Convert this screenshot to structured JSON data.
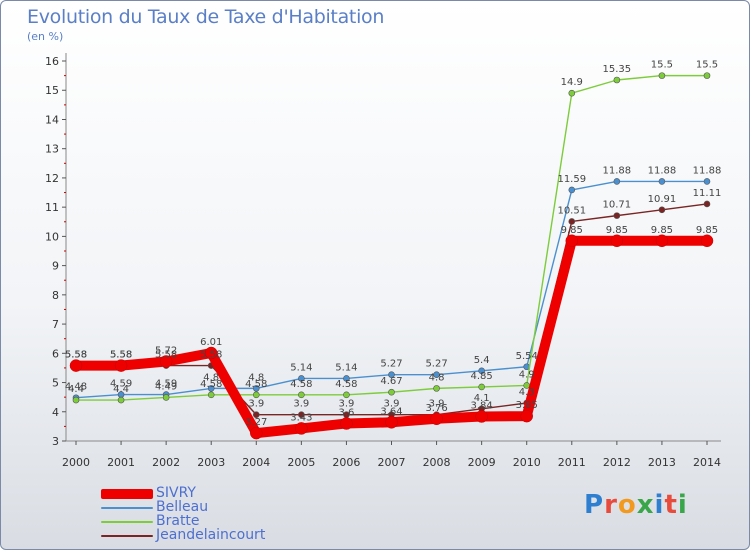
{
  "header": {
    "title": "Evolution du Taux de Taxe d'Habitation",
    "subtitle": "(en %)"
  },
  "logo": {
    "text": "Proxiti",
    "letter_colors": [
      "#2f7fd0",
      "#e84b3c",
      "#f29a1f",
      "#3aa64a",
      "#2f7fd0",
      "#e84b3c",
      "#3aa64a"
    ]
  },
  "chart_data": {
    "type": "line",
    "x": [
      "2000",
      "2001",
      "2002",
      "2003",
      "2004",
      "2005",
      "2006",
      "2007",
      "2008",
      "2009",
      "2010",
      "2011",
      "2012",
      "2013",
      "2014"
    ],
    "ylim": [
      3,
      16
    ],
    "yticks": [
      3,
      4,
      5,
      6,
      7,
      8,
      9,
      10,
      11,
      12,
      13,
      14,
      15,
      16
    ],
    "grid": false,
    "legend_position": "bottom-left",
    "series": [
      {
        "name": "SIVRY",
        "color": "#ee0000",
        "values": [
          5.58,
          5.58,
          5.72,
          6.01,
          3.27,
          3.43,
          3.6,
          3.64,
          3.76,
          3.84,
          3.85,
          9.85,
          9.85,
          9.85,
          9.85
        ],
        "labels": [
          "5.58",
          "5.58",
          "5.72",
          "6.01",
          "3.27",
          "3.43",
          "3.6",
          "3.64",
          "3.76",
          "3.84",
          "3.85",
          "9.85",
          "9.85",
          "9.85",
          "9.85"
        ]
      },
      {
        "name": "Belleau",
        "color": "#4a90d0",
        "values": [
          4.48,
          4.59,
          4.59,
          4.8,
          4.8,
          5.14,
          5.14,
          5.27,
          5.27,
          5.4,
          5.54,
          11.59,
          11.88,
          11.88,
          11.88
        ],
        "labels": [
          "4.48",
          "4.59",
          "4.59",
          "4.8",
          "4.8",
          "5.14",
          "5.14",
          "5.27",
          "5.27",
          "5.4",
          "5.54",
          "11.59",
          "11.88",
          "11.88",
          "11.88"
        ]
      },
      {
        "name": "Bratte",
        "color": "#7dcc3a",
        "values": [
          4.4,
          4.4,
          4.49,
          4.58,
          4.58,
          4.58,
          4.58,
          4.67,
          4.8,
          4.85,
          4.9,
          14.9,
          15.35,
          15.5,
          15.5
        ],
        "labels": [
          "4.4",
          "4.4",
          "4.49",
          "4.58",
          "4.58",
          "4.58",
          "4.58",
          "4.67",
          "4.8",
          "4.85",
          "4.9",
          "14.9",
          "15.35",
          "15.5",
          "15.5"
        ]
      },
      {
        "name": "Jeandelaincourt",
        "color": "#7a2424",
        "values": [
          5.58,
          5.58,
          5.58,
          5.58,
          3.9,
          3.9,
          3.9,
          3.9,
          3.9,
          4.1,
          4.3,
          10.51,
          10.71,
          10.91,
          11.11
        ],
        "labels": [
          "5.58",
          "5.58",
          "5.58",
          "5.58",
          "3.9",
          "3.9",
          "3.9",
          "3.9",
          "3.9",
          "4.1",
          "4.3",
          "10.51",
          "10.71",
          "10.91",
          "11.11"
        ]
      }
    ]
  }
}
